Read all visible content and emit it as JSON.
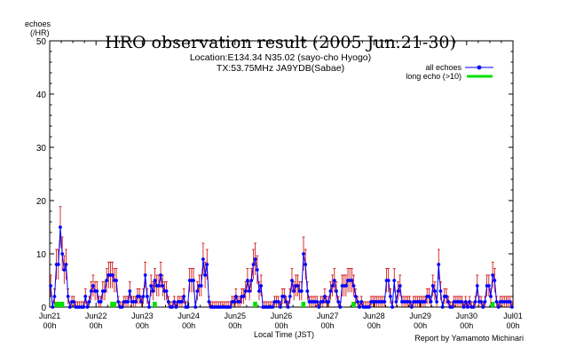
{
  "chart_data": {
    "type": "line",
    "title": "HRO observation result (2005 Jun.21-30)",
    "subtitle_lines": [
      "Location:E134.34 N35.02 (sayo-cho Hyogo)",
      "TX:53.75MHz JA9YDB(Sabae)"
    ],
    "ylabel_lines": [
      "echoes",
      "(/HR)"
    ],
    "xlabel": "Local Time (JST)",
    "credit": "Report by Yamamoto Michinari",
    "ylim": [
      0,
      50
    ],
    "y_ticks": [
      0,
      10,
      20,
      30,
      40,
      50
    ],
    "x_range_hours": [
      0,
      240
    ],
    "x_ticks": [
      {
        "hour": 0,
        "line1": "Jun21",
        "line2": "00h"
      },
      {
        "hour": 24,
        "line1": "Jun22",
        "line2": "00h"
      },
      {
        "hour": 48,
        "line1": "Jun23",
        "line2": "00h"
      },
      {
        "hour": 72,
        "line1": "Jun24",
        "line2": "00h"
      },
      {
        "hour": 96,
        "line1": "Jun25",
        "line2": "00h"
      },
      {
        "hour": 120,
        "line1": "Jun26",
        "line2": "00h"
      },
      {
        "hour": 144,
        "line1": "Jun27",
        "line2": "00h"
      },
      {
        "hour": 168,
        "line1": "Jun28",
        "line2": "00h"
      },
      {
        "hour": 192,
        "line1": "Jun29",
        "line2": "00h"
      },
      {
        "hour": 216,
        "line1": "Jun30",
        "line2": "00h"
      },
      {
        "hour": 240,
        "line1": "Jul01",
        "line2": "00h"
      }
    ],
    "legend_placement": "top-right",
    "series": [
      {
        "name": "all echoes",
        "color": "#0000ff",
        "errorbar_color": "#cc0000",
        "values": [
          4,
          0,
          2,
          8,
          8,
          15,
          10,
          7,
          8,
          2,
          0,
          1,
          1,
          0,
          0,
          0,
          0,
          0,
          2,
          0,
          1,
          3,
          4,
          3,
          3,
          1,
          1,
          3,
          3,
          5,
          6,
          6,
          6,
          5,
          5,
          1,
          0,
          0,
          1,
          1,
          1,
          3,
          1,
          1,
          1,
          2,
          2,
          1,
          2,
          6,
          2,
          0,
          4,
          3,
          5,
          4,
          4,
          6,
          4,
          3,
          3,
          1,
          0,
          0,
          1,
          0,
          1,
          1,
          1,
          2,
          0,
          0,
          5,
          5,
          5,
          0,
          3,
          4,
          4,
          9,
          6,
          8,
          1,
          0,
          0,
          0,
          0,
          0,
          0,
          0,
          0,
          0,
          0,
          0,
          1,
          1,
          2,
          1,
          1,
          2,
          2,
          3,
          5,
          3,
          5,
          8,
          9,
          7,
          3,
          4,
          0,
          0,
          0,
          0,
          0,
          0,
          1,
          1,
          1,
          0,
          2,
          2,
          1,
          0,
          2,
          5,
          3,
          4,
          4,
          3,
          3,
          10,
          8,
          3,
          1,
          1,
          1,
          1,
          1,
          0,
          1,
          1,
          2,
          1,
          1,
          3,
          4,
          5,
          3,
          1,
          0,
          4,
          4,
          4,
          5,
          5,
          5,
          4,
          2,
          1,
          0,
          1,
          0,
          0,
          0,
          0,
          1,
          1,
          1,
          1,
          1,
          1,
          1,
          1,
          5,
          5,
          2,
          0,
          5,
          1,
          3,
          4,
          1,
          1,
          1,
          1,
          1,
          0,
          1,
          1,
          1,
          1,
          1,
          1,
          1,
          2,
          2,
          1,
          4,
          3,
          1,
          8,
          3,
          0,
          2,
          2,
          1,
          0,
          0,
          1,
          1,
          1,
          1,
          1,
          0,
          1,
          0,
          1,
          0,
          0,
          1,
          4,
          1,
          1,
          0,
          1,
          4,
          4,
          2,
          6,
          5,
          1,
          0,
          1,
          1,
          1,
          1,
          1,
          1,
          0
        ]
      },
      {
        "name": "long echo (>10)",
        "color": "#00e000",
        "values": [
          0,
          0,
          0,
          1,
          1,
          1,
          1,
          1,
          0,
          0,
          0,
          0,
          0,
          0,
          0,
          0,
          0,
          0,
          0,
          0,
          0,
          0,
          0,
          0,
          0,
          0,
          0,
          0,
          0,
          0,
          0,
          0,
          1,
          1,
          1,
          0,
          0,
          0,
          0,
          0,
          0,
          0,
          0,
          0,
          0,
          0,
          0,
          0,
          0,
          0,
          0,
          0,
          0,
          0,
          1,
          1,
          0,
          0,
          0,
          0,
          0,
          0,
          0,
          0,
          0,
          0,
          0,
          0,
          0,
          0,
          0,
          0,
          0,
          0,
          0,
          0,
          0,
          0,
          0,
          0,
          0,
          0,
          0,
          0,
          0,
          0,
          0,
          0,
          0,
          0,
          0,
          0,
          0,
          0,
          0,
          0,
          0,
          0,
          0,
          0,
          0,
          0,
          0,
          0,
          0,
          0,
          1,
          1,
          0,
          0,
          0,
          0,
          0,
          0,
          0,
          0,
          0,
          0,
          0,
          0,
          0,
          0,
          0,
          0,
          0,
          0,
          0,
          0,
          0,
          0,
          0,
          1,
          1,
          0,
          0,
          0,
          0,
          0,
          0,
          0,
          0,
          0,
          0,
          0,
          0,
          0,
          0,
          0,
          0,
          0,
          0,
          0,
          0,
          0,
          0,
          0,
          0,
          1,
          1,
          0,
          0,
          0,
          0,
          0,
          0,
          0,
          0,
          0,
          0,
          0,
          0,
          0,
          0,
          0,
          0,
          0,
          0,
          0,
          0,
          0,
          0,
          0,
          0,
          0,
          0,
          0,
          0,
          0,
          0,
          0,
          0,
          0,
          0,
          0,
          0,
          0,
          0,
          0,
          0,
          0,
          0,
          0,
          0,
          0,
          0,
          0,
          0,
          0,
          0,
          0,
          0,
          0,
          0,
          0,
          0,
          0,
          0,
          0,
          0,
          0,
          0,
          0,
          0,
          0,
          0,
          0,
          0,
          0,
          0,
          1,
          1,
          0,
          0,
          0,
          0,
          0,
          0,
          0,
          0,
          0
        ]
      }
    ]
  }
}
